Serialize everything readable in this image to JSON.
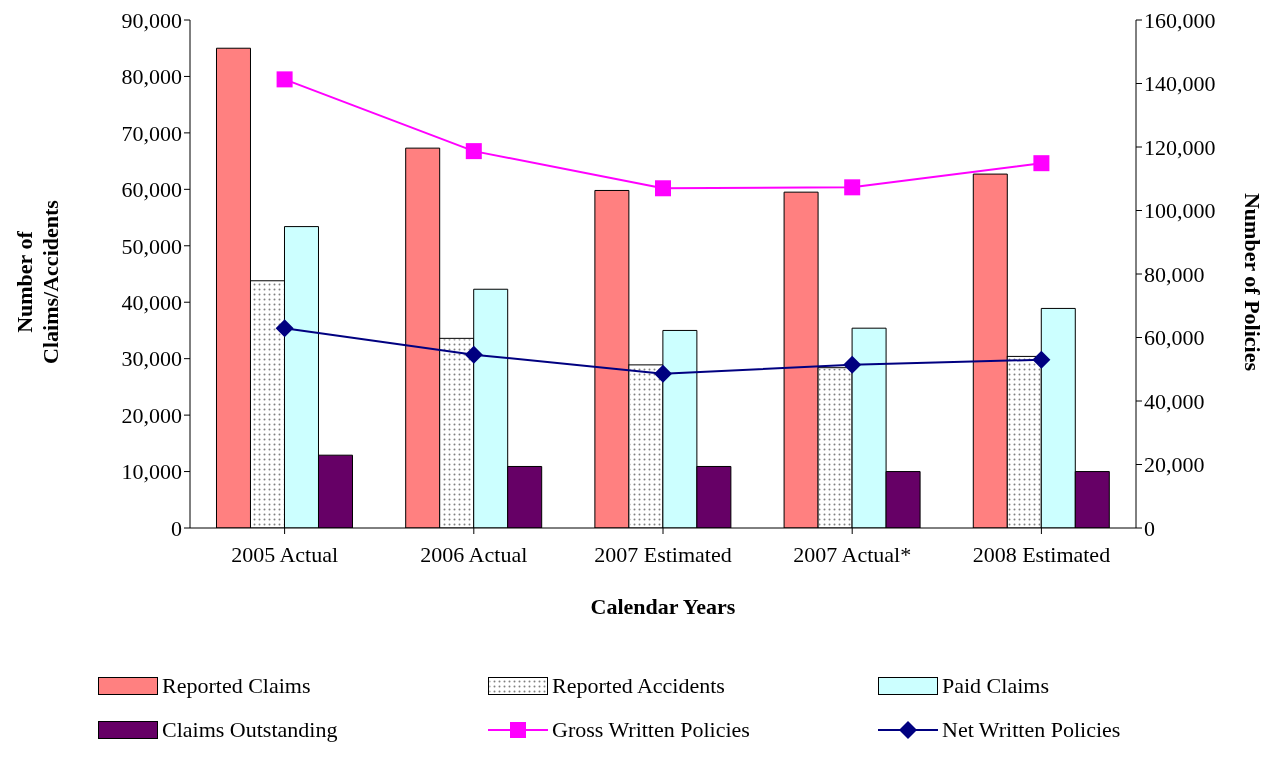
{
  "chart_data": {
    "type": "bar",
    "xlabel": "Calendar Years",
    "ylabel": "Number of Claims/Accidents",
    "y2label": "Number of Policies",
    "categories": [
      "2005 Actual",
      "2006 Actual",
      "2007 Estimated",
      "2007 Actual*",
      "2008 Estimated"
    ],
    "series": [
      {
        "name": "Reported Claims",
        "color": "#ff8080",
        "values": [
          85000,
          67300,
          59800,
          59500,
          62700
        ]
      },
      {
        "name": "Reported Accidents",
        "color": "#ffffff",
        "values": [
          43800,
          33600,
          28900,
          28400,
          30400
        ]
      },
      {
        "name": "Paid Claims",
        "color": "#ccffff",
        "values": [
          53400,
          42300,
          35000,
          35400,
          38900
        ]
      },
      {
        "name": "Claims Outstanding",
        "color": "#660066",
        "values": [
          12900,
          10900,
          10900,
          10000,
          10000
        ]
      },
      {
        "name": "Gross Written Policies",
        "type": "line",
        "axis": "y2",
        "marker": "square",
        "color": "#ff00ff",
        "values": [
          141300,
          118700,
          107000,
          107300,
          114900
        ]
      },
      {
        "name": "Net Written Policies",
        "type": "line",
        "axis": "y2",
        "marker": "diamond",
        "color": "#000080",
        "values": [
          62900,
          54600,
          48600,
          51400,
          53000
        ]
      }
    ],
    "ylim": [
      0,
      90000
    ],
    "yticks": [
      0,
      {
        "value": 10000,
        "label": "10,000"
      },
      {
        "value": 20000,
        "label": "20,000"
      },
      {
        "value": 30000,
        "label": "30,000"
      },
      {
        "value": 40000,
        "label": "40,000"
      },
      {
        "value": 50000,
        "label": "50,000"
      },
      {
        "value": 60000,
        "label": "60,000"
      },
      {
        "value": 70000,
        "label": "70,000"
      },
      {
        "value": 80000,
        "label": "80,000"
      },
      {
        "value": 90000,
        "label": "90,000"
      }
    ],
    "y2lim": [
      0,
      160000
    ],
    "y2ticks": [
      0,
      {
        "value": 20000,
        "label": "20,000"
      },
      {
        "value": 40000,
        "label": "40,000"
      },
      {
        "value": 60000,
        "label": "60,000"
      },
      {
        "value": 80000,
        "label": "80,000"
      },
      {
        "value": 100000,
        "label": "100,000"
      },
      {
        "value": 120000,
        "label": "120,000"
      },
      {
        "value": 140000,
        "label": "140,000"
      },
      {
        "value": 160000,
        "label": "160,000"
      }
    ],
    "grid": false,
    "legend": "bottom"
  }
}
